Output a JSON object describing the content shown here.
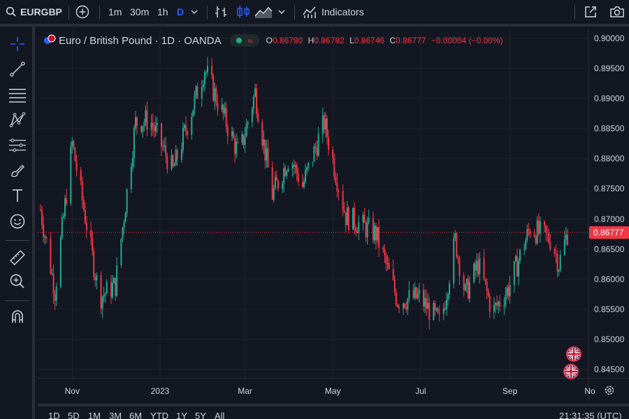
{
  "toolbar": {
    "symbol": "EURGBP",
    "intervals": [
      "1m",
      "30m",
      "1h",
      "D"
    ],
    "indicators_label": "Indicators"
  },
  "legend": {
    "title": "Euro / British Pound · 1D · OANDA",
    "status_mark": "≈",
    "ohlc": {
      "o_label": "O",
      "o": "0.86780",
      "h_label": "H",
      "h": "0.86782",
      "l_label": "L",
      "l": "0.86746",
      "c_label": "C",
      "c": "0.86777",
      "change": "−0.00004 (−0.00%)"
    }
  },
  "colors": {
    "up": "#22ab94",
    "down": "#f23645",
    "background": "#131722",
    "grid": "#1e222d",
    "accent": "#2962ff"
  },
  "chart_data": {
    "type": "candlestick",
    "price_axis": {
      "range": [
        0.8435,
        0.9015
      ],
      "ticks": [
        "0.90000",
        "0.89500",
        "0.89000",
        "0.88500",
        "0.88000",
        "0.87500",
        "0.87000",
        "0.86500",
        "0.86000",
        "0.85500",
        "0.85000",
        "0.84500"
      ]
    },
    "time_axis": [
      "Nov",
      "2023",
      "Mar",
      "May",
      "Jul",
      "Sep",
      "No"
    ],
    "last_price": "0.86777",
    "path_keypoints": [
      {
        "date": "2022-10-10",
        "close": 0.8715
      },
      {
        "date": "2022-10-20",
        "close": 0.858
      },
      {
        "date": "2022-11-01",
        "close": 0.8825
      },
      {
        "date": "2022-11-20",
        "close": 0.857
      },
      {
        "date": "2022-12-01",
        "close": 0.859
      },
      {
        "date": "2022-12-15",
        "close": 0.886
      },
      {
        "date": "2022-12-25",
        "close": 0.8865
      },
      {
        "date": "2023-01-10",
        "close": 0.878
      },
      {
        "date": "2023-02-01",
        "close": 0.895
      },
      {
        "date": "2023-02-25",
        "close": 0.8805
      },
      {
        "date": "2023-03-08",
        "close": 0.891
      },
      {
        "date": "2023-03-20",
        "close": 0.874
      },
      {
        "date": "2023-04-01",
        "close": 0.8805
      },
      {
        "date": "2023-04-10",
        "close": 0.8755
      },
      {
        "date": "2023-04-25",
        "close": 0.886
      },
      {
        "date": "2023-05-10",
        "close": 0.8705
      },
      {
        "date": "2023-05-31",
        "close": 0.8675
      },
      {
        "date": "2023-06-15",
        "close": 0.8565
      },
      {
        "date": "2023-06-30",
        "close": 0.857
      },
      {
        "date": "2023-07-15",
        "close": 0.8525
      },
      {
        "date": "2023-07-25",
        "close": 0.8665
      },
      {
        "date": "2023-08-01",
        "close": 0.8575
      },
      {
        "date": "2023-08-10",
        "close": 0.8625
      },
      {
        "date": "2023-08-20",
        "close": 0.8545
      },
      {
        "date": "2023-08-31",
        "close": 0.8585
      },
      {
        "date": "2023-09-15",
        "close": 0.8685
      },
      {
        "date": "2023-09-30",
        "close": 0.8665
      },
      {
        "date": "2023-10-05",
        "close": 0.8625
      },
      {
        "date": "2023-10-11",
        "close": 0.8677
      }
    ]
  },
  "ranges": [
    "1D",
    "5D",
    "1M",
    "3M",
    "6M",
    "YTD",
    "1Y",
    "5Y",
    "All"
  ],
  "clock": "21:31:35 (UTC)"
}
